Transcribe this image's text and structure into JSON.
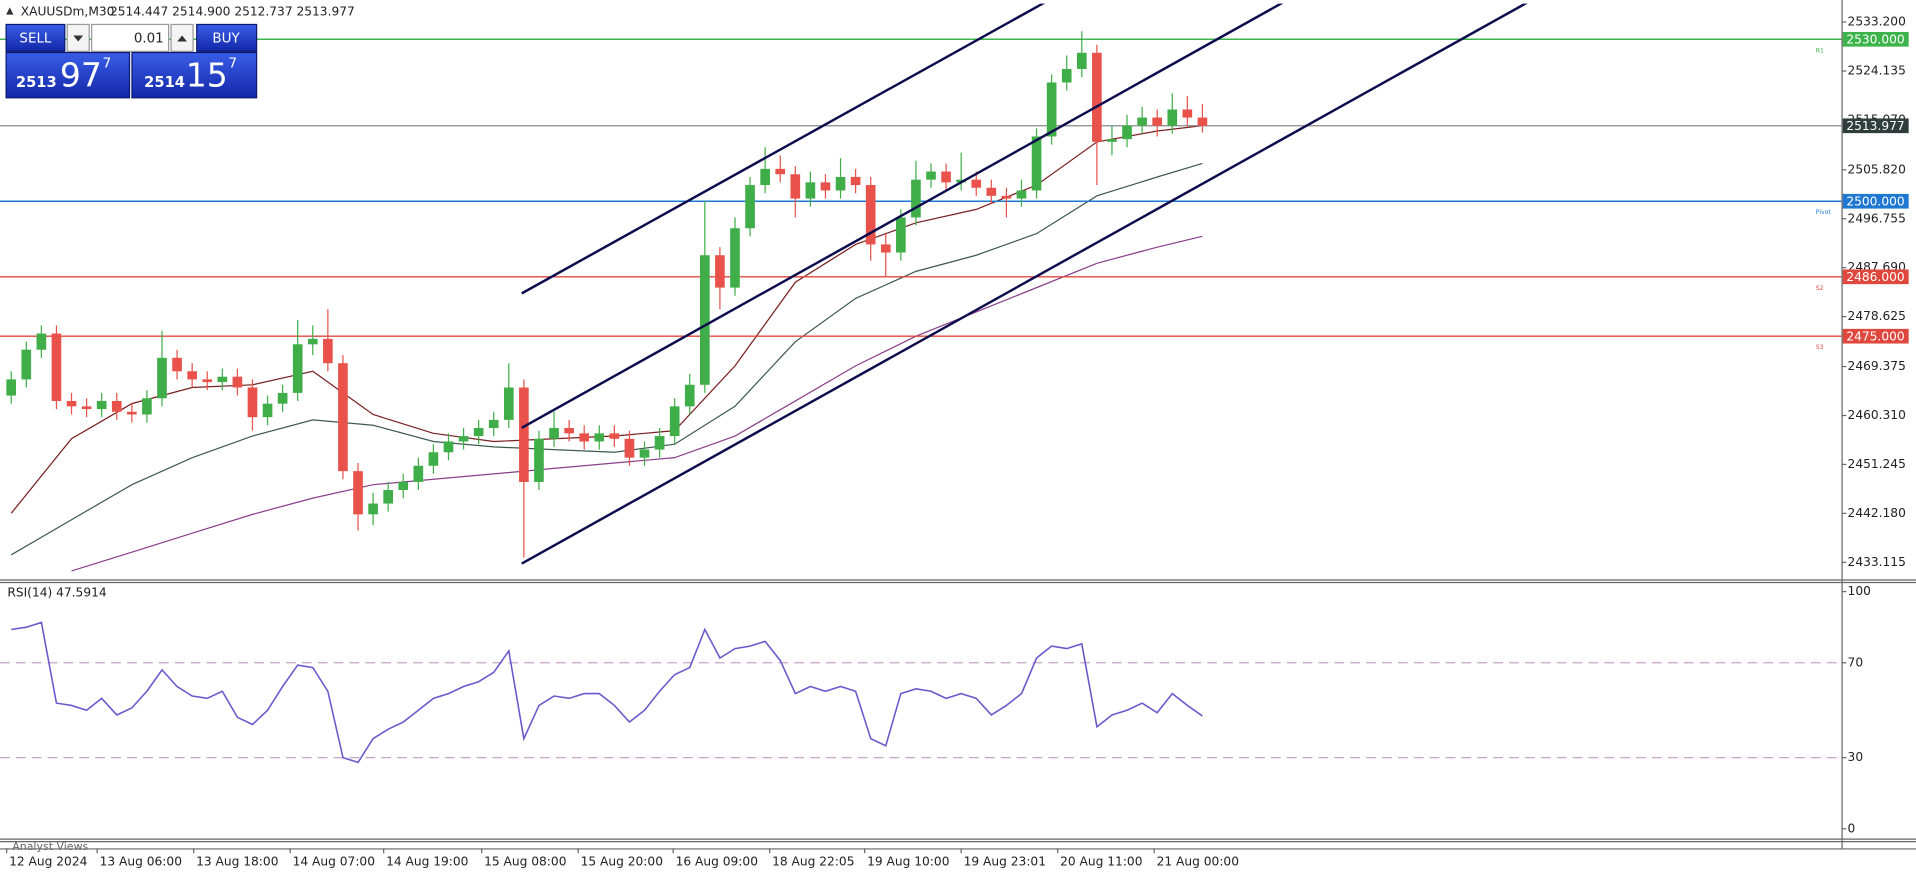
{
  "header": {
    "symbol": "XAUUSDm,M30",
    "ohlc": "2514.447 2514.900 2512.737 2513.977"
  },
  "trade_panel": {
    "sell": "SELL",
    "lot": "0.01",
    "buy": "BUY",
    "bid": {
      "big": "2513",
      "main": "97",
      "sup": "7"
    },
    "ask": {
      "big": "2514",
      "main": "15",
      "sup": "7"
    }
  },
  "footer_tab": "Analyst Views",
  "chart_data": [
    {
      "type": "candlestick",
      "up_color": "#3fae49",
      "down_color": "#e8524a",
      "grid": false,
      "candles": [
        [
          2464.0,
          2468.5,
          2462.5,
          2467.0
        ],
        [
          2467.0,
          2474.0,
          2465.5,
          2472.5
        ],
        [
          2472.5,
          2477.0,
          2471.0,
          2475.5
        ],
        [
          2475.5,
          2477.0,
          2461.5,
          2463.0
        ],
        [
          2463.0,
          2464.5,
          2460.5,
          2462.0
        ],
        [
          2462.0,
          2463.5,
          2460.0,
          2461.5
        ],
        [
          2461.5,
          2464.5,
          2460.0,
          2463.0
        ],
        [
          2463.0,
          2464.5,
          2459.5,
          2461.0
        ],
        [
          2461.0,
          2462.5,
          2459.0,
          2460.5
        ],
        [
          2460.5,
          2465.0,
          2459.0,
          2463.5
        ],
        [
          2463.5,
          2476.0,
          2462.0,
          2471.0
        ],
        [
          2471.0,
          2472.5,
          2467.0,
          2468.5
        ],
        [
          2468.5,
          2470.0,
          2465.5,
          2467.0
        ],
        [
          2467.0,
          2468.5,
          2465.0,
          2466.5
        ],
        [
          2466.5,
          2469.0,
          2465.0,
          2467.5
        ],
        [
          2467.5,
          2469.0,
          2464.0,
          2465.5
        ],
        [
          2465.5,
          2467.0,
          2457.5,
          2460.0
        ],
        [
          2460.0,
          2464.0,
          2458.5,
          2462.5
        ],
        [
          2462.5,
          2466.0,
          2461.0,
          2464.5
        ],
        [
          2464.5,
          2478.0,
          2463.0,
          2473.5
        ],
        [
          2473.5,
          2477.0,
          2471.5,
          2474.5
        ],
        [
          2474.5,
          2480.0,
          2468.5,
          2470.0
        ],
        [
          2470.0,
          2471.5,
          2448.5,
          2450.0
        ],
        [
          2450.0,
          2451.5,
          2439.0,
          2442.0
        ],
        [
          2442.0,
          2446.0,
          2440.0,
          2444.0
        ],
        [
          2444.0,
          2448.0,
          2442.5,
          2446.5
        ],
        [
          2446.5,
          2449.5,
          2445.0,
          2448.0
        ],
        [
          2448.0,
          2452.5,
          2446.5,
          2451.0
        ],
        [
          2451.0,
          2455.0,
          2449.5,
          2453.5
        ],
        [
          2453.5,
          2457.0,
          2452.0,
          2455.5
        ],
        [
          2455.5,
          2458.0,
          2454.0,
          2456.5
        ],
        [
          2456.5,
          2459.5,
          2455.0,
          2458.0
        ],
        [
          2458.0,
          2461.0,
          2456.5,
          2459.5
        ],
        [
          2459.5,
          2470.0,
          2458.0,
          2465.5
        ],
        [
          2465.5,
          2467.0,
          2434.0,
          2448.0
        ],
        [
          2448.0,
          2457.5,
          2446.5,
          2456.0
        ],
        [
          2456.0,
          2461.0,
          2454.5,
          2458.0
        ],
        [
          2458.0,
          2459.5,
          2455.5,
          2457.0
        ],
        [
          2457.0,
          2458.5,
          2454.0,
          2455.5
        ],
        [
          2455.5,
          2458.5,
          2454.0,
          2457.0
        ],
        [
          2457.0,
          2458.5,
          2454.5,
          2456.0
        ],
        [
          2456.0,
          2457.5,
          2451.0,
          2452.5
        ],
        [
          2452.5,
          2455.5,
          2451.0,
          2454.0
        ],
        [
          2454.0,
          2458.0,
          2452.5,
          2456.5
        ],
        [
          2456.5,
          2463.5,
          2455.0,
          2462.0
        ],
        [
          2462.0,
          2468.0,
          2460.5,
          2466.0
        ],
        [
          2466.0,
          2500.0,
          2464.5,
          2490.0
        ],
        [
          2490.0,
          2491.5,
          2480.0,
          2484.0
        ],
        [
          2484.0,
          2497.0,
          2482.5,
          2495.0
        ],
        [
          2495.0,
          2504.5,
          2493.5,
          2503.0
        ],
        [
          2503.0,
          2510.0,
          2501.5,
          2506.0
        ],
        [
          2506.0,
          2508.5,
          2503.5,
          2505.0
        ],
        [
          2505.0,
          2506.5,
          2497.0,
          2500.5
        ],
        [
          2500.5,
          2505.5,
          2499.0,
          2503.5
        ],
        [
          2503.5,
          2505.0,
          2500.5,
          2502.0
        ],
        [
          2502.0,
          2508.0,
          2500.5,
          2504.5
        ],
        [
          2504.5,
          2506.0,
          2501.5,
          2503.0
        ],
        [
          2503.0,
          2504.5,
          2489.0,
          2492.0
        ],
        [
          2492.0,
          2494.0,
          2486.0,
          2490.5
        ],
        [
          2490.5,
          2498.5,
          2489.0,
          2497.0
        ],
        [
          2497.0,
          2507.5,
          2495.5,
          2504.0
        ],
        [
          2504.0,
          2507.0,
          2502.5,
          2505.5
        ],
        [
          2505.5,
          2507.0,
          2502.0,
          2503.5
        ],
        [
          2503.5,
          2509.0,
          2502.0,
          2504.0
        ],
        [
          2504.0,
          2505.5,
          2501.0,
          2502.5
        ],
        [
          2502.5,
          2504.0,
          2499.5,
          2501.0
        ],
        [
          2501.0,
          2502.5,
          2497.0,
          2500.5
        ],
        [
          2500.5,
          2504.0,
          2499.0,
          2502.0
        ],
        [
          2502.0,
          2513.5,
          2500.5,
          2512.0
        ],
        [
          2512.0,
          2523.5,
          2510.5,
          2522.0
        ],
        [
          2522.0,
          2527.0,
          2520.5,
          2524.5
        ],
        [
          2524.5,
          2531.5,
          2523.0,
          2527.5
        ],
        [
          2527.5,
          2529.0,
          2503.0,
          2511.0
        ],
        [
          2511.0,
          2514.0,
          2508.5,
          2511.5
        ],
        [
          2511.5,
          2516.0,
          2510.0,
          2514.0
        ],
        [
          2514.0,
          2517.5,
          2512.5,
          2515.5
        ],
        [
          2515.5,
          2517.0,
          2512.0,
          2514.0
        ],
        [
          2514.0,
          2520.0,
          2512.5,
          2517.0
        ],
        [
          2517.0,
          2519.5,
          2514.0,
          2515.5
        ],
        [
          2515.5,
          2518.0,
          2512.737,
          2513.977
        ]
      ],
      "series": [
        {
          "color": "#7a1f1f",
          "x": [
            0,
            4,
            8,
            12,
            16,
            20,
            24,
            28,
            32,
            36,
            40,
            44,
            48,
            52,
            56,
            60,
            64,
            68,
            72,
            76,
            79
          ],
          "values": [
            2442.2,
            2456.0,
            2462.5,
            2465.5,
            2466.0,
            2468.5,
            2460.5,
            2457.0,
            2455.5,
            2456.0,
            2456.5,
            2457.5,
            2469.5,
            2485.0,
            2492.0,
            2496.0,
            2498.5,
            2503.0,
            2511.0,
            2513.0,
            2514.0
          ]
        },
        {
          "color": "#3c5a50",
          "x": [
            0,
            4,
            8,
            12,
            16,
            20,
            24,
            28,
            32,
            36,
            40,
            44,
            48,
            52,
            56,
            60,
            64,
            68,
            72,
            76,
            79
          ],
          "values": [
            2434.5,
            2441.0,
            2447.5,
            2452.5,
            2456.5,
            2459.5,
            2458.5,
            2455.5,
            2454.5,
            2454.0,
            2453.5,
            2455.0,
            2462.0,
            2474.0,
            2482.0,
            2487.0,
            2490.0,
            2494.0,
            2501.0,
            2504.5,
            2507.0
          ]
        },
        {
          "color": "#8a3f8a",
          "x": [
            4,
            8,
            12,
            16,
            20,
            24,
            28,
            32,
            36,
            40,
            44,
            48,
            52,
            56,
            60,
            64,
            68,
            72,
            76,
            79
          ],
          "values": [
            2431.5,
            2435.0,
            2438.5,
            2442.0,
            2445.0,
            2447.5,
            2448.5,
            2449.5,
            2450.5,
            2451.5,
            2452.5,
            2456.5,
            2463.0,
            2469.5,
            2475.0,
            2479.5,
            2484.0,
            2488.5,
            2491.5,
            2493.5
          ]
        }
      ],
      "levels": [
        {
          "value": 2530,
          "label": "2530.000",
          "name": "R1",
          "color": "#3cb44b"
        },
        {
          "value": 2500,
          "label": "2500.000",
          "name": "Pivot",
          "color": "#1e78d2"
        },
        {
          "value": 2486,
          "label": "2486.000",
          "name": "S2",
          "color": "#e0483e"
        },
        {
          "value": 2475,
          "label": "2475.000",
          "name": "S3",
          "color": "#e0483e"
        }
      ],
      "current_price": {
        "value": 2513.977,
        "label": "2513.977",
        "color": "#8a8a8a"
      },
      "xlim": [
        -0.5,
        121.38
      ],
      "xticks": [
        {
          "value": -0.3,
          "label": "12 Aug 2024"
        },
        {
          "value": 5.7,
          "label": "13 Aug 06:00"
        },
        {
          "value": 12.1,
          "label": "13 Aug 18:00"
        },
        {
          "value": 18.5,
          "label": "14 Aug 07:00"
        },
        {
          "value": 24.7,
          "label": "14 Aug 19:00"
        },
        {
          "value": 31.2,
          "label": "15 Aug 08:00"
        },
        {
          "value": 37.6,
          "label": "15 Aug 20:00"
        },
        {
          "value": 43.9,
          "label": "16 Aug 09:00"
        },
        {
          "value": 50.3,
          "label": "18 Aug 22:05"
        },
        {
          "value": 56.6,
          "label": "19 Aug 10:00"
        },
        {
          "value": 63.0,
          "label": "19 Aug 23:01"
        },
        {
          "value": 69.4,
          "label": "20 Aug 11:00"
        },
        {
          "value": 75.8,
          "label": "21 Aug 00:00"
        }
      ],
      "ylim": [
        2430.4,
        2536.6
      ],
      "yticks": [
        {
          "value": 2533.2,
          "label": "2533.200"
        },
        {
          "value": 2524.135,
          "label": "2524.135"
        },
        {
          "value": 2515.07,
          "label": "2515.070"
        },
        {
          "value": 2505.82,
          "label": "2505.820"
        },
        {
          "value": 2496.755,
          "label": "2496.755"
        },
        {
          "value": 2487.69,
          "label": "2487.690"
        },
        {
          "value": 2478.625,
          "label": "2478.625"
        },
        {
          "value": 2469.375,
          "label": "2469.375"
        },
        {
          "value": 2460.31,
          "label": "2460.310"
        },
        {
          "value": 2451.245,
          "label": "2451.245"
        },
        {
          "value": 2442.18,
          "label": "2442.180"
        },
        {
          "value": 2433.115,
          "label": "2433.115"
        }
      ]
    },
    {
      "type": "line",
      "title": "RSI(14) 47.5914",
      "color": "#6a5acd",
      "values": [
        84,
        85,
        87,
        53,
        52,
        50,
        55,
        48,
        51,
        58,
        67,
        60,
        56,
        55,
        58,
        47,
        44,
        50,
        60,
        69,
        68,
        58,
        30,
        28,
        38,
        42,
        45,
        50,
        55,
        57,
        60,
        62,
        66,
        75,
        38,
        52,
        56,
        55,
        57,
        57,
        52,
        45,
        50,
        58,
        65,
        68,
        84,
        72,
        76,
        77,
        79,
        71,
        57,
        60,
        58,
        60,
        58,
        38,
        35,
        57,
        59,
        58,
        55,
        57,
        55,
        48,
        52,
        57,
        72,
        77,
        76,
        78,
        43,
        48,
        50,
        53,
        49,
        57,
        52,
        47.5914
      ],
      "ylim": [
        -4.1,
        103.6
      ],
      "yticks": [
        0,
        30,
        70,
        100
      ],
      "levels": [
        70,
        30
      ],
      "level_color": "#c9a3c9"
    }
  ]
}
